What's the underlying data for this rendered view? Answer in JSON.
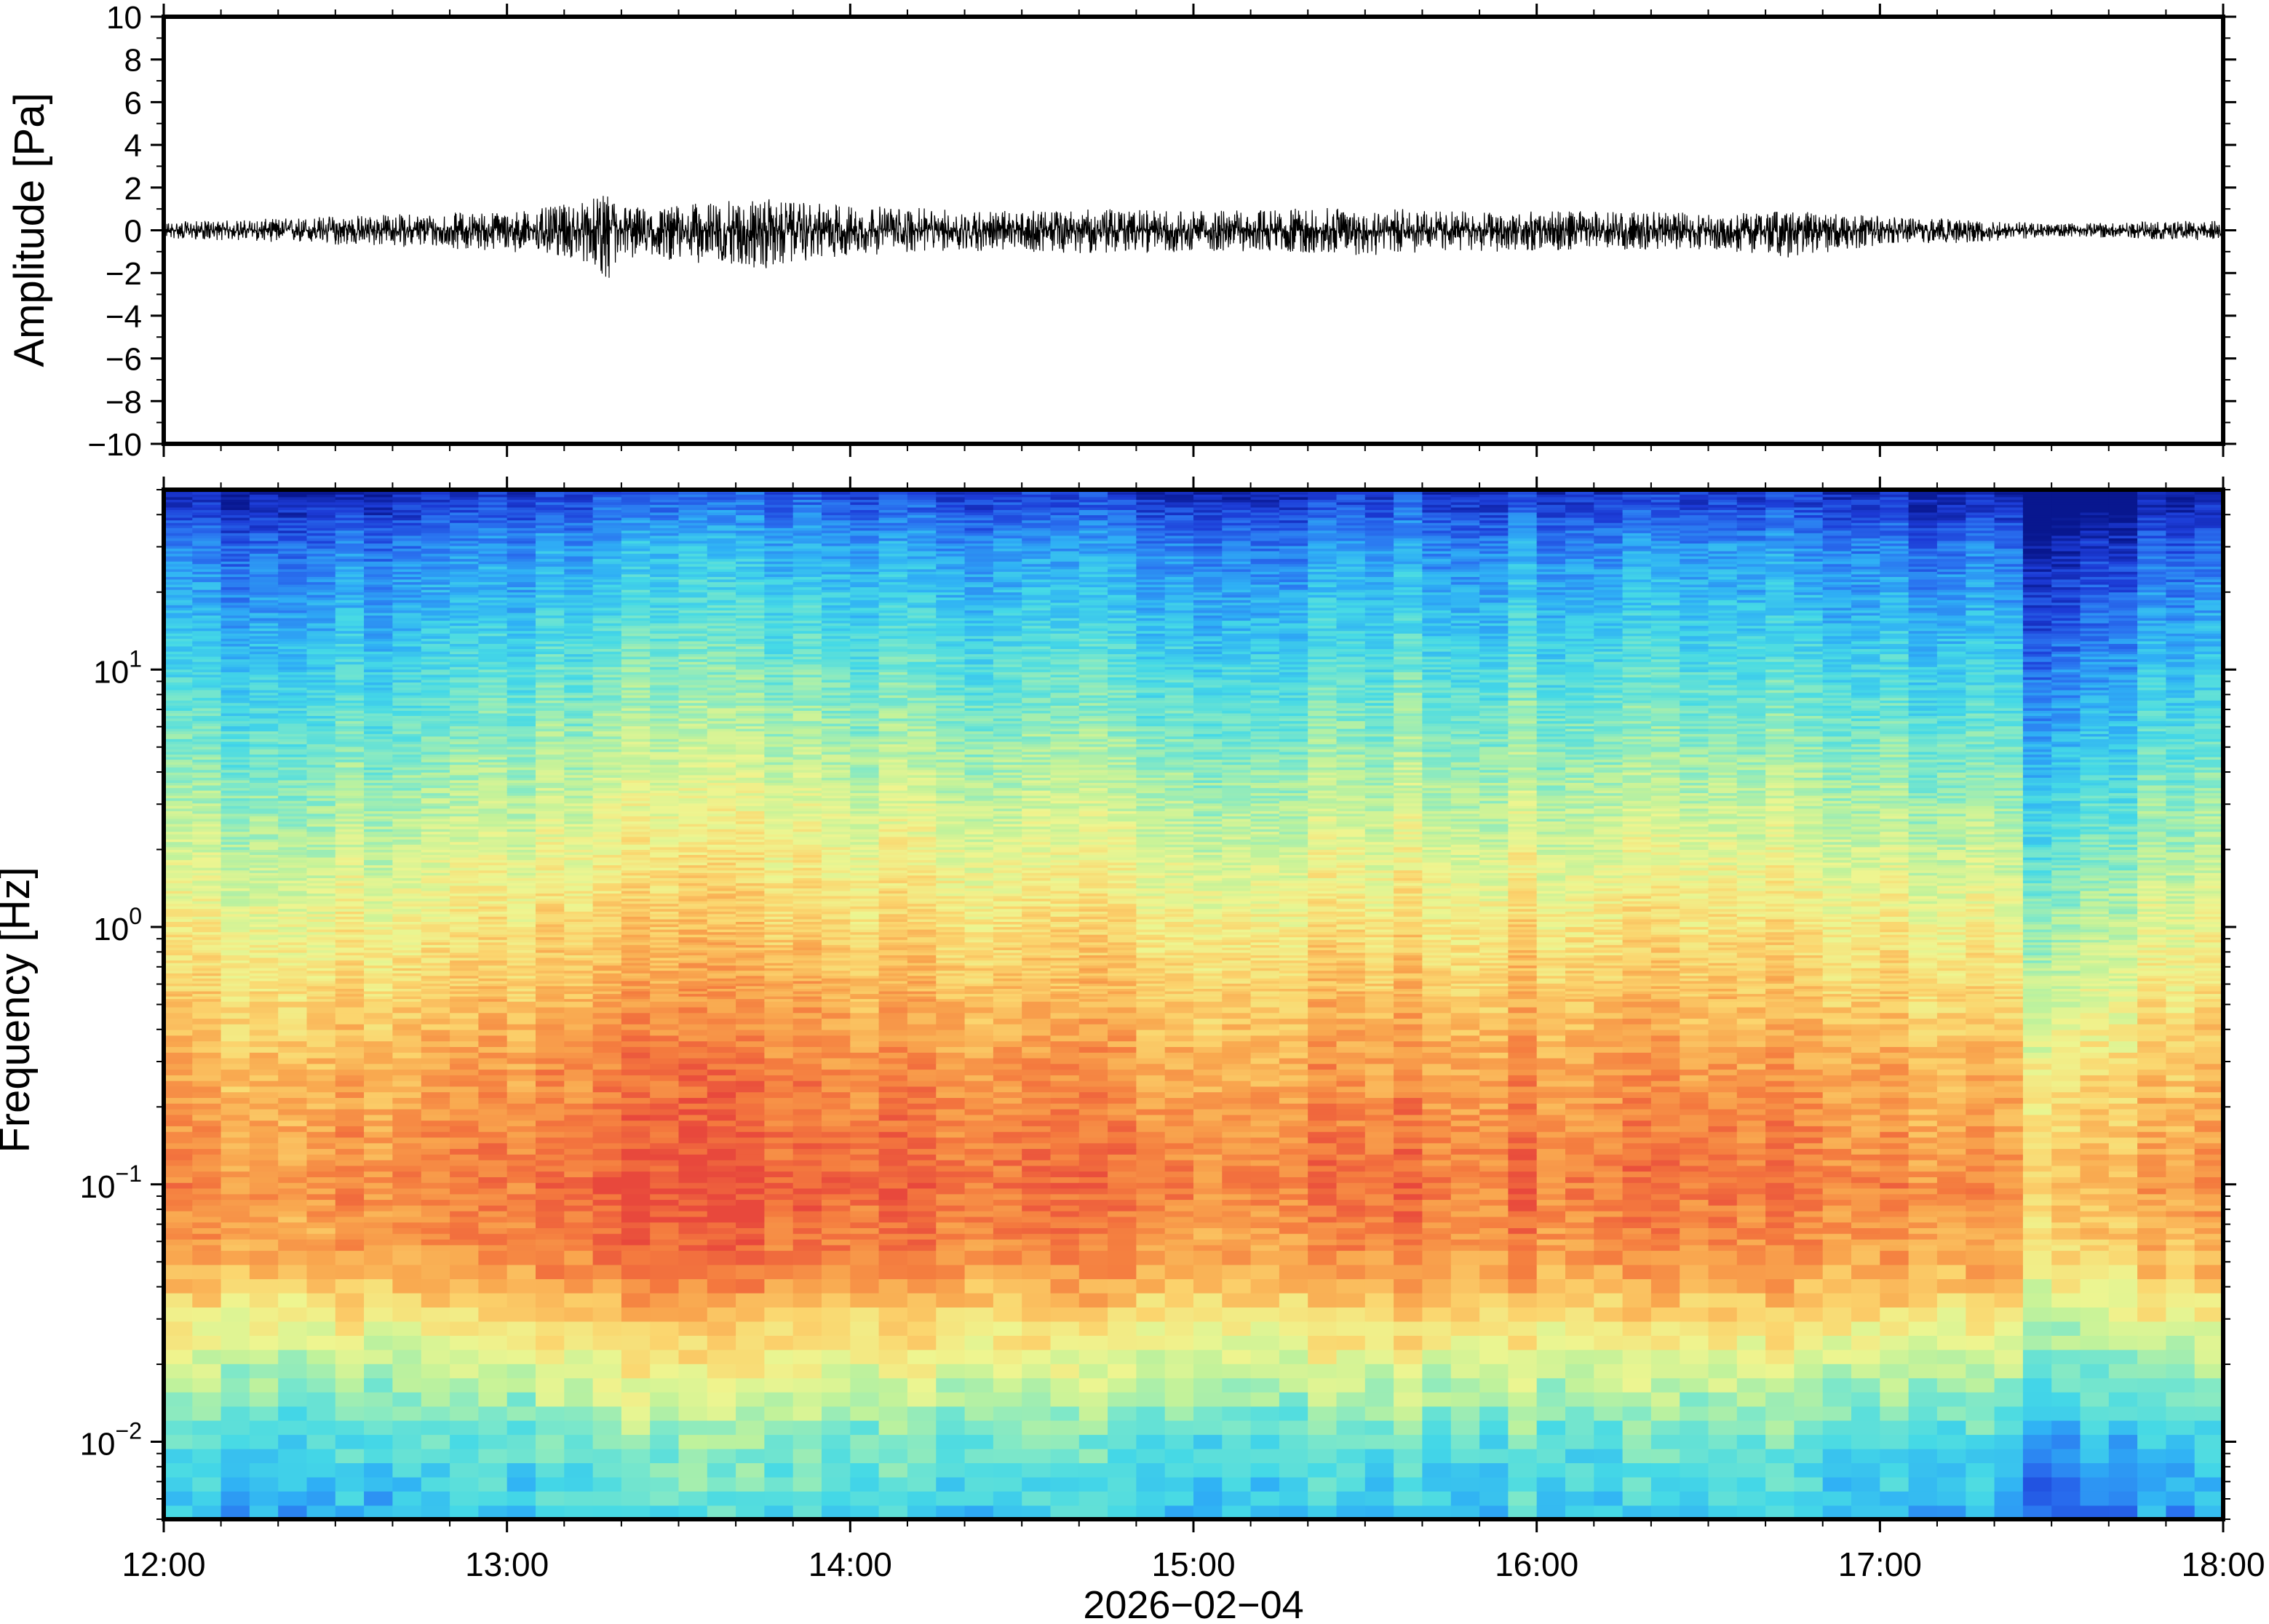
{
  "chart_data": [
    {
      "type": "line",
      "title": "",
      "xlabel": "",
      "ylabel": "Amplitude [Pa]",
      "ylim": [
        -10,
        10
      ],
      "yticks": [
        10,
        8,
        6,
        4,
        2,
        0,
        -2,
        -4,
        -6,
        -8,
        -10
      ],
      "ytick_labels": [
        "10",
        "8",
        "6",
        "4",
        "2",
        "0",
        "−2",
        "−4",
        "−6",
        "−8",
        "−10"
      ],
      "xlim": [
        "12:00",
        "18:00"
      ],
      "grid": false,
      "line_color": "#000000",
      "series": [
        {
          "x": [
            "12:00",
            "12:15",
            "12:30",
            "12:45",
            "13:00",
            "13:05",
            "13:10",
            "13:15",
            "13:18",
            "13:20",
            "13:25",
            "13:30",
            "13:40",
            "13:45",
            "13:50",
            "14:00",
            "14:15",
            "14:30",
            "14:45",
            "15:00",
            "15:15",
            "15:30",
            "15:45",
            "16:00",
            "16:15",
            "16:30",
            "16:45",
            "17:00",
            "17:15",
            "17:30",
            "17:45",
            "18:00"
          ],
          "envelope_max": [
            0.4,
            0.5,
            0.7,
            0.8,
            0.9,
            1.0,
            1.2,
            1.5,
            1.7,
            1.3,
            1.0,
            1.2,
            1.4,
            1.5,
            1.3,
            1.2,
            1.0,
            0.9,
            1.0,
            0.9,
            1.0,
            1.1,
            0.9,
            0.9,
            0.9,
            0.8,
            0.9,
            0.7,
            0.6,
            0.3,
            0.4,
            0.5
          ],
          "envelope_min": [
            -0.4,
            -0.5,
            -0.7,
            -0.8,
            -1.0,
            -1.1,
            -1.3,
            -1.6,
            -2.5,
            -1.4,
            -1.2,
            -1.5,
            -1.6,
            -2.0,
            -1.5,
            -1.2,
            -1.0,
            -1.0,
            -1.1,
            -1.0,
            -1.0,
            -1.2,
            -1.0,
            -1.0,
            -0.9,
            -0.9,
            -1.3,
            -0.7,
            -0.6,
            -0.3,
            -0.4,
            -0.5
          ]
        }
      ]
    },
    {
      "type": "heatmap",
      "title": "",
      "xlabel": "2026−02−04",
      "ylabel": "Frequency [Hz]",
      "yscale": "log",
      "ylim": [
        0.005,
        50
      ],
      "yticks": [
        10,
        1,
        0.1,
        0.01
      ],
      "ytick_labels": [
        {
          "base": "10",
          "exp": "1"
        },
        {
          "base": "10",
          "exp": "0"
        },
        {
          "base": "10",
          "exp": "−1"
        },
        {
          "base": "10",
          "exp": "−2"
        }
      ],
      "xlim": [
        "12:00",
        "18:00"
      ],
      "xtick_labels": [
        "12:00",
        "13:00",
        "14:00",
        "15:00",
        "16:00",
        "17:00",
        "18:00"
      ],
      "grid": false,
      "colormap": [
        "#08178f",
        "#1c3bd6",
        "#2a73f0",
        "#2fb0f5",
        "#45d9e6",
        "#7fe8c8",
        "#c2f29a",
        "#eef590",
        "#fbd56e",
        "#f9a84f",
        "#f4793e",
        "#e8483c"
      ],
      "intensity_by_frequency": {
        "frequency_hz": [
          0.005,
          0.01,
          0.02,
          0.05,
          0.1,
          0.3,
          1,
          3,
          10,
          30,
          50
        ],
        "relative_level": [
          0.33,
          0.42,
          0.6,
          0.86,
          0.92,
          0.84,
          0.7,
          0.56,
          0.4,
          0.24,
          0.08
        ]
      },
      "intensity_by_time": {
        "time": [
          "12:00",
          "12:30",
          "13:00",
          "13:15",
          "13:30",
          "13:45",
          "14:00",
          "14:30",
          "15:00",
          "15:30",
          "16:00",
          "16:30",
          "17:00",
          "17:20",
          "17:30",
          "17:40",
          "18:00"
        ],
        "relative_offset": [
          -0.06,
          -0.04,
          -0.01,
          0.04,
          0.05,
          0.06,
          0.03,
          0.0,
          -0.02,
          0.0,
          0.0,
          -0.01,
          -0.03,
          -0.06,
          -0.2,
          -0.12,
          -0.05
        ]
      }
    }
  ]
}
